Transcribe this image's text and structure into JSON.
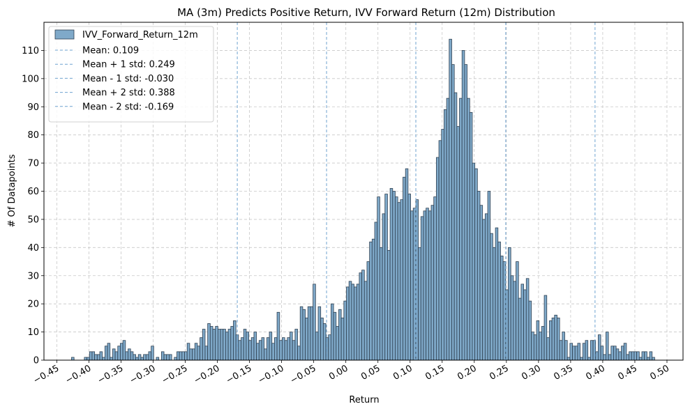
{
  "chart_data": {
    "type": "bar",
    "title": "MA (3m) Predicts Positive Return, IVV Forward Return (12m) Distribution",
    "xlabel": "Return",
    "ylabel": "# Of Datapoints",
    "xlim": [
      -0.47,
      0.525
    ],
    "ylim": [
      0,
      120
    ],
    "xticks": [
      -0.45,
      -0.4,
      -0.35,
      -0.3,
      -0.25,
      -0.2,
      -0.15,
      -0.1,
      -0.05,
      0.0,
      0.05,
      0.1,
      0.15,
      0.2,
      0.25,
      0.3,
      0.35,
      0.4,
      0.45,
      0.5
    ],
    "xtick_labels": [
      "−0.45",
      "−0.40",
      "−0.35",
      "−0.30",
      "−0.25",
      "−0.20",
      "−0.15",
      "−0.10",
      "−0.05",
      "0.00",
      "0.05",
      "0.10",
      "0.15",
      "0.20",
      "0.25",
      "0.30",
      "0.35",
      "0.40",
      "0.45",
      "0.50"
    ],
    "yticks": [
      0,
      10,
      20,
      30,
      40,
      50,
      60,
      70,
      80,
      90,
      100,
      110
    ],
    "ytick_labels": [
      "0",
      "10",
      "20",
      "30",
      "40",
      "50",
      "60",
      "70",
      "80",
      "90",
      "100",
      "110"
    ],
    "grid": true,
    "legend_position": "top-left",
    "bin_start": -0.4391,
    "bin_width": 0.004,
    "series": [
      {
        "name": "IVV_Forward_Return_12m",
        "color": "#7fa9c9",
        "edge_color": "#2e3f50",
        "values": [
          0,
          0,
          0,
          1,
          0,
          0,
          0,
          0,
          1,
          1,
          3,
          3,
          2,
          2,
          3,
          1,
          5,
          6,
          1,
          4,
          3,
          5,
          6,
          7,
          3,
          4,
          3,
          2,
          1,
          2,
          1,
          2,
          2,
          3,
          5,
          0,
          1,
          0,
          3,
          2,
          2,
          2,
          0,
          1,
          3,
          3,
          3,
          3,
          6,
          4,
          4,
          6,
          5,
          8,
          11,
          5,
          13,
          12,
          11,
          12,
          11,
          11,
          11,
          10,
          11,
          12,
          14,
          9,
          7,
          8,
          11,
          10,
          7,
          8,
          10,
          6,
          7,
          8,
          4,
          8,
          10,
          6,
          8,
          17,
          7,
          8,
          7,
          8,
          10,
          7,
          11,
          5,
          19,
          18,
          15,
          19,
          19,
          27,
          10,
          19,
          15,
          13,
          8,
          9,
          20,
          17,
          12,
          18,
          15,
          21,
          26,
          28,
          27,
          26,
          27,
          31,
          32,
          28,
          35,
          42,
          43,
          49,
          58,
          40,
          52,
          59,
          39,
          61,
          60,
          58,
          56,
          57,
          65,
          68,
          59,
          53,
          54,
          57,
          40,
          51,
          53,
          54,
          53,
          55,
          58,
          72,
          78,
          82,
          89,
          93,
          114,
          105,
          95,
          83,
          93,
          110,
          105,
          93,
          88,
          70,
          68,
          60,
          55,
          50,
          52,
          60,
          45,
          40,
          47,
          42,
          37,
          35,
          25,
          40,
          30,
          28,
          35,
          22,
          27,
          25,
          29,
          21,
          10,
          9,
          14,
          10,
          12,
          23,
          8,
          14,
          15,
          16,
          15,
          7,
          10,
          7,
          1,
          6,
          5,
          5,
          6,
          1,
          6,
          7,
          1,
          7,
          7,
          3,
          9,
          5,
          2,
          10,
          2,
          5,
          5,
          4,
          3,
          5,
          6,
          2,
          3,
          3,
          3,
          3,
          1,
          3,
          3,
          1,
          3,
          1
        ]
      }
    ],
    "vlines": [
      {
        "label": "Mean: 0.109",
        "x": 0.109
      },
      {
        "label": "Mean + 1 std: 0.249",
        "x": 0.249
      },
      {
        "label": "Mean - 1 std: -0.030",
        "x": -0.03
      },
      {
        "label": "Mean + 2 std: 0.388",
        "x": 0.388
      },
      {
        "label": "Mean - 2 std: -0.169",
        "x": -0.169
      }
    ],
    "vline_color": "#6fa3d0"
  }
}
